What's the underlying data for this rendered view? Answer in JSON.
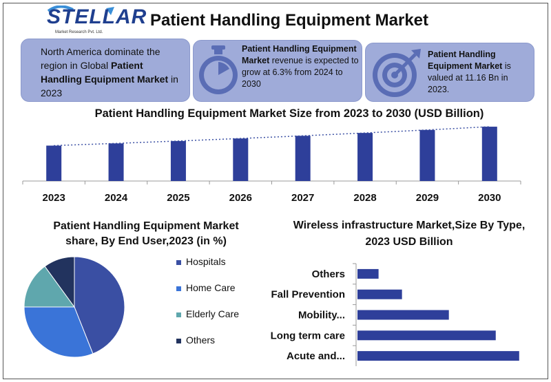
{
  "logo": {
    "word": "STELLAR",
    "sub": "Market Research Pvt. Ltd."
  },
  "title": "Patient Handling Equipment Market",
  "cards": [
    {
      "parts": [
        {
          "t": "North America dominate the region in Global ",
          "b": false
        },
        {
          "t": "Patient Handling Equipment Market",
          "b": true
        },
        {
          "t": " in 2023",
          "b": false
        }
      ],
      "icon": "none"
    },
    {
      "parts": [
        {
          "t": "Patient Handling Equipment Market",
          "b": true
        },
        {
          "t": " revenue is expected to grow at 6.3% from 2024 to 2030",
          "b": false
        }
      ],
      "icon": "stopwatch-icon"
    },
    {
      "parts": [
        {
          "t": "Patient Handling Equipment Market",
          "b": true
        },
        {
          "t": " is valued at 11.16 Bn in 2023.",
          "b": false
        }
      ],
      "icon": "target-icon"
    }
  ],
  "colors": {
    "card": "#9fabd9",
    "bar": "#2e3f9a",
    "icon": "#5a6db5"
  },
  "chart_data": [
    {
      "type": "bar",
      "title": "Patient Handling Equipment Market Size from 2023 to 2030 (USD Billion)",
      "categories": [
        "2023",
        "2024",
        "2025",
        "2026",
        "2027",
        "2028",
        "2029",
        "2030"
      ],
      "values": [
        11.16,
        11.86,
        12.61,
        13.41,
        14.25,
        15.15,
        16.1,
        17.12
      ],
      "trendline": true,
      "ylim": [
        0,
        18
      ],
      "grid": false,
      "xlabel": "",
      "ylabel": ""
    },
    {
      "type": "pie",
      "title": "Patient Handling Equipment Market share, By End User,2023 (in %)",
      "labels": [
        "Hospitals",
        "Home Care",
        "Elderly Care",
        "Others"
      ],
      "values": [
        44,
        31,
        15,
        10
      ],
      "colors": [
        "#3a4fa3",
        "#3a74d8",
        "#5fa7ad",
        "#22335e"
      ],
      "legend": "right"
    },
    {
      "type": "bar",
      "orientation": "horizontal",
      "title": "Wireless infrastructure Market,Size By Type, 2023 USD Billion",
      "categories": [
        "Others",
        "Fall Prevention",
        "Mobility...",
        "Long term care",
        "Acute and..."
      ],
      "values": [
        0.9,
        1.9,
        3.9,
        5.9,
        6.9
      ],
      "xlim": [
        0,
        7.2
      ],
      "grid": false
    }
  ]
}
